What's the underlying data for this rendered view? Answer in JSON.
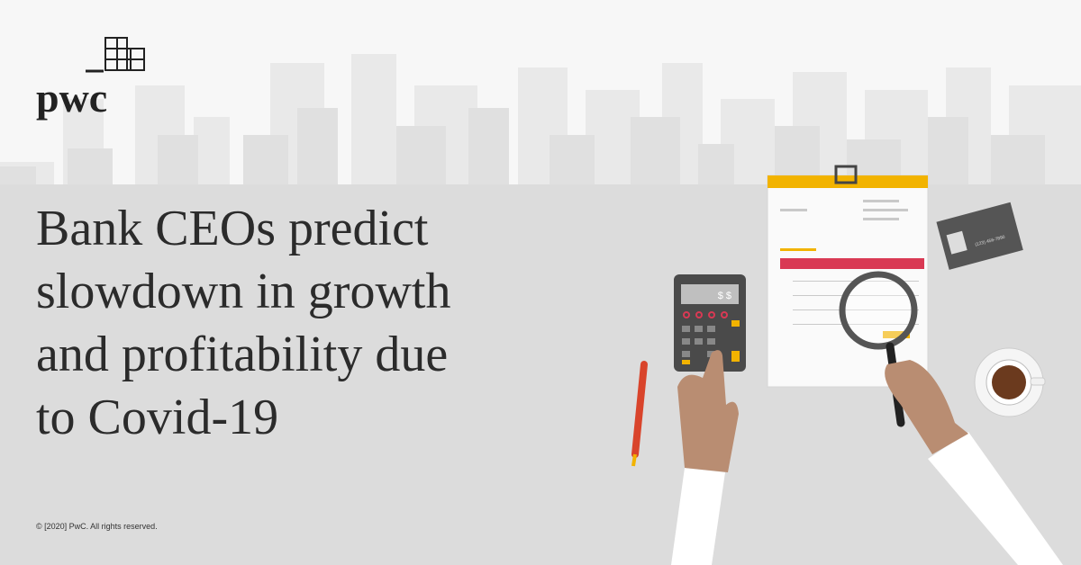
{
  "logo": {
    "text": "pwc"
  },
  "headline": {
    "lines": [
      "Bank CEOs predict",
      "slowdown in growth",
      "and profitability due",
      "to Covid-19"
    ]
  },
  "illustration": {
    "calculator_display": "$ $",
    "card_phone": "(123) 456-7890"
  },
  "footer": {
    "copyright": "© [2020] PwC. All rights reserved."
  }
}
